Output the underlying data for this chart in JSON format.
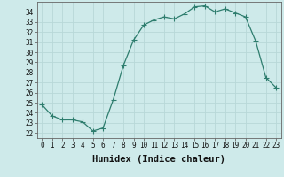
{
  "x": [
    0,
    1,
    2,
    3,
    4,
    5,
    6,
    7,
    8,
    9,
    10,
    11,
    12,
    13,
    14,
    15,
    16,
    17,
    18,
    19,
    20,
    21,
    22,
    23
  ],
  "y": [
    24.8,
    23.7,
    23.3,
    23.3,
    23.1,
    22.2,
    22.5,
    25.3,
    28.7,
    31.2,
    32.7,
    33.2,
    33.5,
    33.3,
    33.8,
    34.5,
    34.6,
    34.0,
    34.3,
    33.9,
    33.5,
    31.1,
    27.5,
    26.5
  ],
  "line_color": "#2e7d6e",
  "marker": "+",
  "marker_size": 4,
  "bg_color": "#ceeaea",
  "grid_color": "#b8d8d8",
  "xlabel": "Humidex (Indice chaleur)",
  "ylim": [
    21.5,
    35.0
  ],
  "xlim": [
    -0.5,
    23.5
  ],
  "yticks": [
    22,
    23,
    24,
    25,
    26,
    27,
    28,
    29,
    30,
    31,
    32,
    33,
    34
  ],
  "xticks": [
    0,
    1,
    2,
    3,
    4,
    5,
    6,
    7,
    8,
    9,
    10,
    11,
    12,
    13,
    14,
    15,
    16,
    17,
    18,
    19,
    20,
    21,
    22,
    23
  ],
  "tick_fontsize": 5.5,
  "label_fontsize": 7.5,
  "linewidth": 0.9,
  "marker_linewidth": 0.8
}
